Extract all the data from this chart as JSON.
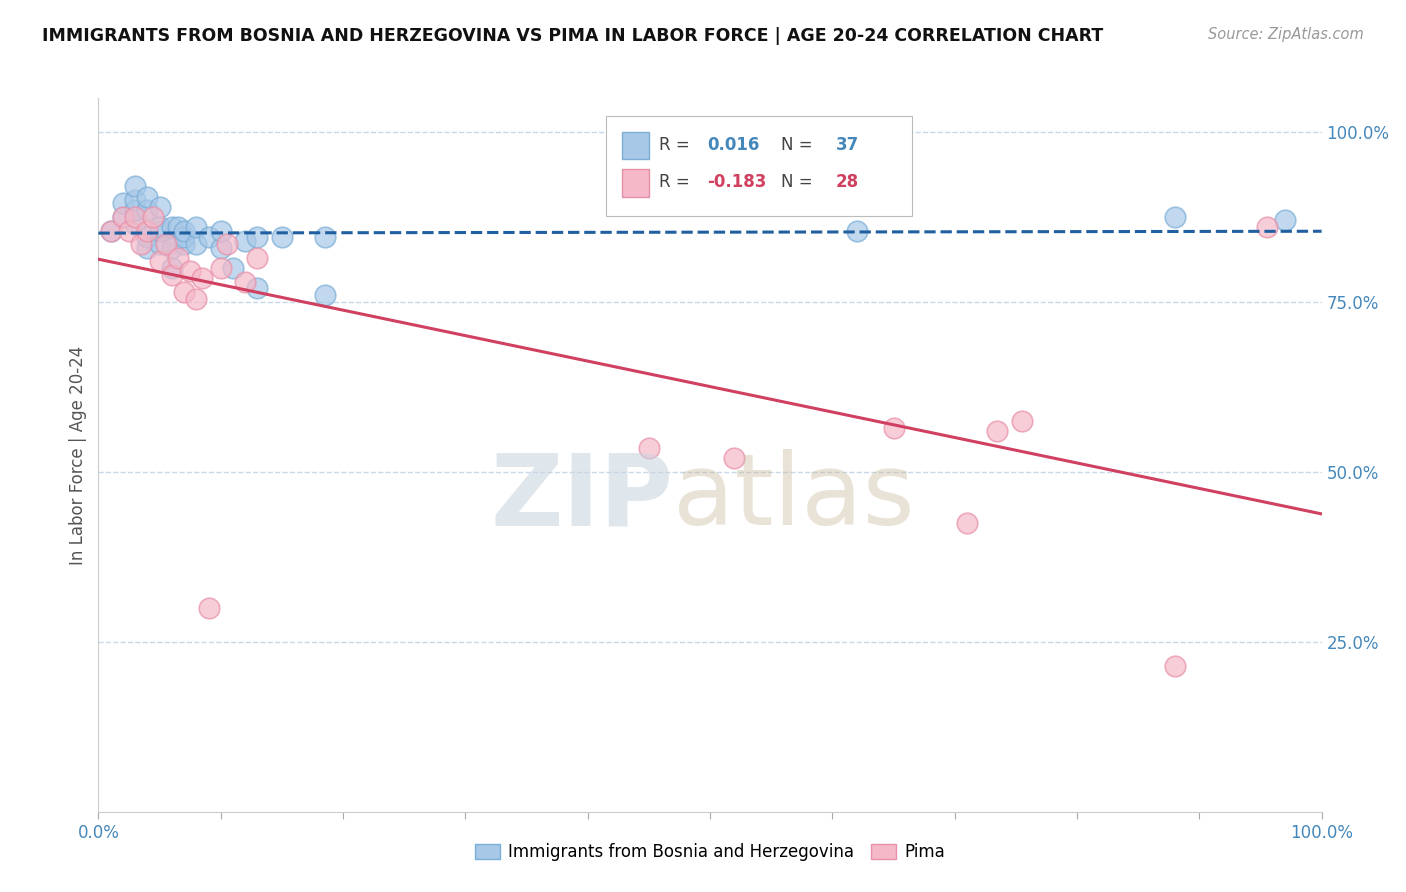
{
  "title": "IMMIGRANTS FROM BOSNIA AND HERZEGOVINA VS PIMA IN LABOR FORCE | AGE 20-24 CORRELATION CHART",
  "source": "Source: ZipAtlas.com",
  "ylabel": "In Labor Force | Age 20-24",
  "xlim": [
    0.0,
    1.0
  ],
  "ylim": [
    0.0,
    1.05
  ],
  "xticks": [
    0.0,
    0.1,
    0.2,
    0.3,
    0.4,
    0.5,
    0.6,
    0.7,
    0.8,
    0.9,
    1.0
  ],
  "xticklabels_ends": [
    "0.0%",
    "100.0%"
  ],
  "ytick_right_labels": [
    "25.0%",
    "50.0%",
    "75.0%",
    "100.0%"
  ],
  "ytick_right_values": [
    0.25,
    0.5,
    0.75,
    1.0
  ],
  "legend1_R": "0.016",
  "legend1_N": "37",
  "legend2_R": "-0.183",
  "legend2_N": "28",
  "blue_color": "#a8c8e8",
  "blue_edge_color": "#7aaed6",
  "pink_color": "#f4b8c8",
  "pink_edge_color": "#e890a8",
  "blue_line_color": "#2060a0",
  "pink_line_color": "#d04060",
  "grid_color": "#c8d8e8",
  "blue_x": [
    0.01,
    0.02,
    0.02,
    0.03,
    0.03,
    0.03,
    0.03,
    0.04,
    0.04,
    0.04,
    0.04,
    0.05,
    0.05,
    0.05,
    0.05,
    0.06,
    0.06,
    0.06,
    0.065,
    0.07,
    0.07,
    0.07,
    0.08,
    0.08,
    0.09,
    0.1,
    0.1,
    0.11,
    0.12,
    0.13,
    0.13,
    0.15,
    0.185,
    0.185,
    0.62,
    0.88,
    0.97
  ],
  "blue_y": [
    0.855,
    0.875,
    0.895,
    0.865,
    0.885,
    0.9,
    0.92,
    0.83,
    0.845,
    0.885,
    0.905,
    0.835,
    0.855,
    0.86,
    0.89,
    0.8,
    0.83,
    0.86,
    0.86,
    0.835,
    0.845,
    0.855,
    0.835,
    0.86,
    0.845,
    0.83,
    0.855,
    0.8,
    0.84,
    0.77,
    0.845,
    0.845,
    0.76,
    0.845,
    0.855,
    0.875,
    0.87
  ],
  "pink_x": [
    0.01,
    0.02,
    0.025,
    0.03,
    0.035,
    0.04,
    0.045,
    0.05,
    0.055,
    0.06,
    0.065,
    0.07,
    0.075,
    0.08,
    0.085,
    0.09,
    0.1,
    0.105,
    0.12,
    0.13,
    0.45,
    0.52,
    0.65,
    0.71,
    0.735,
    0.755,
    0.88,
    0.955
  ],
  "pink_y": [
    0.855,
    0.875,
    0.855,
    0.875,
    0.835,
    0.855,
    0.875,
    0.81,
    0.835,
    0.79,
    0.815,
    0.765,
    0.795,
    0.755,
    0.785,
    0.3,
    0.8,
    0.835,
    0.78,
    0.815,
    0.535,
    0.52,
    0.565,
    0.425,
    0.56,
    0.575,
    0.215,
    0.86
  ]
}
